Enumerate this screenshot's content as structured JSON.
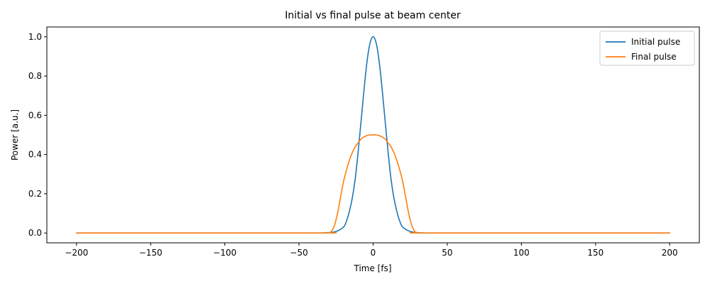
{
  "chart_data": {
    "type": "line",
    "title": "Initial vs final pulse at beam center",
    "xlabel": "Time [fs]",
    "ylabel": "Power [a.u.]",
    "xlim": [
      -220,
      220
    ],
    "ylim": [
      -0.05,
      1.05
    ],
    "xticks": [
      -200,
      -150,
      -100,
      -50,
      0,
      50,
      100,
      150,
      200
    ],
    "xtick_labels": [
      "−200",
      "−150",
      "−100",
      "−50",
      "0",
      "50",
      "100",
      "150",
      "200"
    ],
    "yticks": [
      0.0,
      0.2,
      0.4,
      0.6,
      0.8,
      1.0
    ],
    "ytick_labels": [
      "0.0",
      "0.2",
      "0.4",
      "0.6",
      "0.8",
      "1.0"
    ],
    "grid": false,
    "legend_position": "top-right",
    "series": [
      {
        "name": "Initial pulse",
        "color": "#1f77b4",
        "x": [
          -200,
          -60,
          -40,
          -30,
          -25,
          -20,
          -18,
          -16,
          -14,
          -12,
          -10,
          -8,
          -6,
          -4,
          -2,
          0,
          2,
          4,
          6,
          8,
          10,
          12,
          14,
          16,
          18,
          20,
          25,
          30,
          40,
          60,
          200
        ],
        "values": [
          0.0,
          0.0,
          0.0,
          0.002,
          0.008,
          0.03,
          0.06,
          0.11,
          0.18,
          0.28,
          0.42,
          0.58,
          0.74,
          0.88,
          0.97,
          1.0,
          0.97,
          0.88,
          0.74,
          0.58,
          0.42,
          0.28,
          0.18,
          0.11,
          0.06,
          0.03,
          0.008,
          0.002,
          0.0,
          0.0,
          0.0
        ]
      },
      {
        "name": "Final pulse",
        "color": "#ff7f0e",
        "x": [
          -200,
          -40,
          -30,
          -28,
          -26,
          -24,
          -22,
          -20,
          -18,
          -16,
          -14,
          -12,
          -10,
          -8,
          -6,
          -4,
          -2,
          0,
          2,
          4,
          6,
          8,
          10,
          12,
          14,
          16,
          18,
          20,
          22,
          24,
          26,
          28,
          30,
          40,
          200
        ],
        "values": [
          0.0,
          0.0,
          0.002,
          0.01,
          0.04,
          0.1,
          0.18,
          0.26,
          0.32,
          0.37,
          0.41,
          0.44,
          0.46,
          0.48,
          0.49,
          0.497,
          0.5,
          0.5,
          0.5,
          0.497,
          0.49,
          0.48,
          0.46,
          0.44,
          0.41,
          0.37,
          0.32,
          0.26,
          0.18,
          0.1,
          0.04,
          0.01,
          0.002,
          0.0,
          0.0
        ]
      }
    ]
  }
}
